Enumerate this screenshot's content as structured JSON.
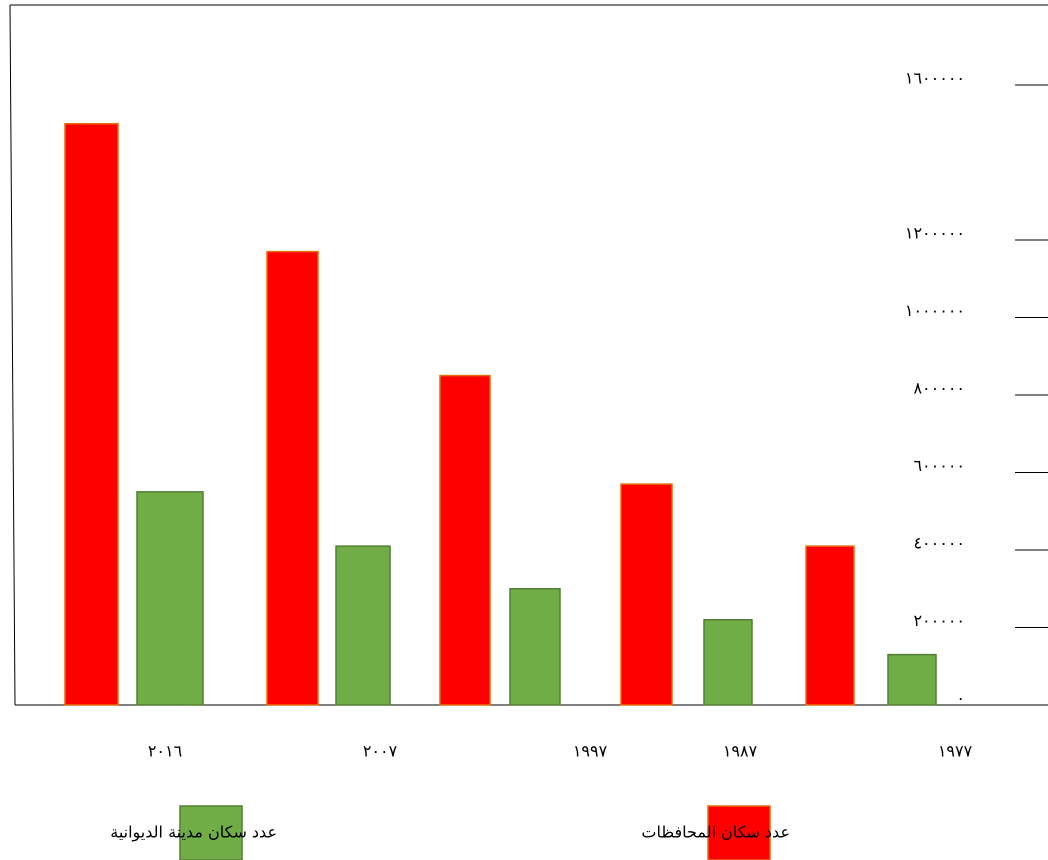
{
  "chart_data": {
    "type": "bar",
    "categories": [
      "٢٠١٦",
      "٢٠٠٧",
      "١٩٩٧",
      "١٩٨٧",
      "١٩٧٧"
    ],
    "series": [
      {
        "name": "عدد سكان المحافظات",
        "color": "#ff0000",
        "values": [
          1500000,
          1170000,
          850000,
          570000,
          410000
        ]
      },
      {
        "name": "عدد سكان مدينة الديوانية",
        "color": "#70ad47",
        "values": [
          550000,
          410000,
          300000,
          220000,
          130000
        ]
      }
    ],
    "ylim": [
      0,
      1600000
    ],
    "yticks": [
      {
        "value": 0,
        "label": "٠"
      },
      {
        "value": 200000,
        "label": "٢٠٠٠٠٠"
      },
      {
        "value": 400000,
        "label": "٤٠٠٠٠٠"
      },
      {
        "value": 600000,
        "label": "٦٠٠٠٠٠"
      },
      {
        "value": 800000,
        "label": "٨٠٠٠٠٠"
      },
      {
        "value": 1000000,
        "label": "١٠٠٠٠٠٠"
      },
      {
        "value": 1200000,
        "label": "١٢٠٠٠٠٠"
      },
      {
        "value": 1600000,
        "label": "١٦٠٠٠٠٠"
      }
    ]
  }
}
